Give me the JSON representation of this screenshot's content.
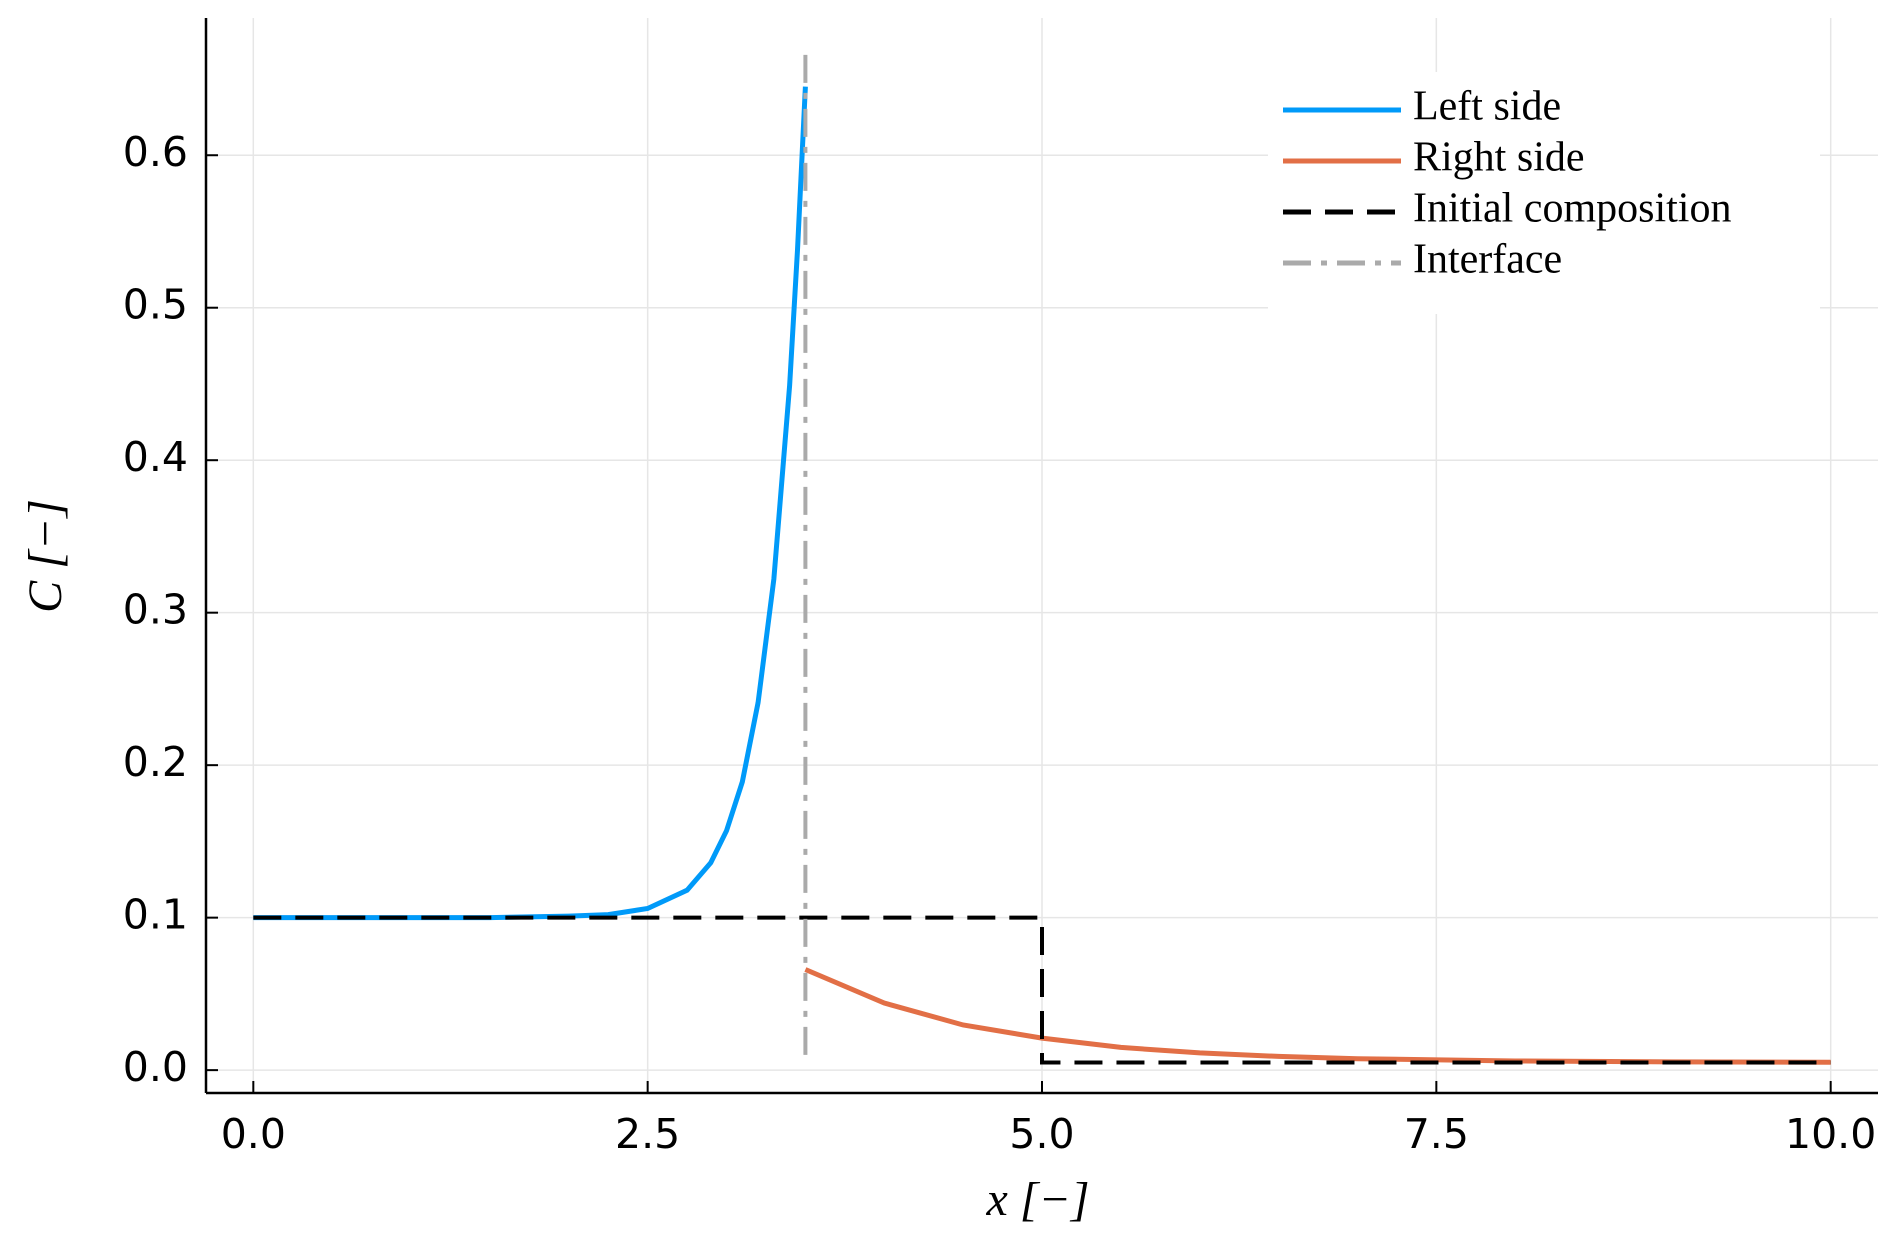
{
  "chart_data": {
    "type": "line",
    "xlabel": "x [−]",
    "ylabel": "C [−]",
    "xlim": [
      -0.3,
      10.3
    ],
    "ylim": [
      -0.015,
      0.69
    ],
    "xticks": [
      {
        "value": 0,
        "label": "0.0"
      },
      2.5,
      {
        "value": 5,
        "label": "5.0"
      },
      7.5,
      {
        "value": 10,
        "label": "10.0"
      }
    ],
    "yticks": [
      {
        "value": 0,
        "label": "0.0"
      },
      0.1,
      0.2,
      0.3,
      0.4,
      0.5,
      0.6
    ],
    "grid": true,
    "legend": "top-right",
    "series": [
      {
        "name": "Left side",
        "color": "#009af9",
        "line_style": "solid",
        "x": [
          0,
          0.5,
          1,
          1.5,
          2,
          2.25,
          2.5,
          2.75,
          2.9,
          3.0,
          3.1,
          3.2,
          3.3,
          3.4,
          3.45,
          3.5
        ],
        "values": [
          0.1,
          0.1,
          0.1,
          0.1,
          0.101,
          0.102,
          0.106,
          0.118,
          0.136,
          0.157,
          0.189,
          0.241,
          0.322,
          0.449,
          0.538,
          0.645
        ]
      },
      {
        "name": "Right side",
        "color": "#e26f46",
        "line_style": "solid",
        "x": [
          3.5,
          4,
          4.5,
          5,
          5.5,
          6,
          6.5,
          7,
          8,
          9,
          10
        ],
        "values": [
          0.066,
          0.044,
          0.0296,
          0.021,
          0.0149,
          0.0113,
          0.009,
          0.0075,
          0.006,
          0.0054,
          0.0052
        ]
      },
      {
        "name": "Initial composition",
        "color": "#000000",
        "line_style": "dash",
        "x": [
          0,
          5,
          5,
          10
        ],
        "values": [
          0.1,
          0.1,
          0.005,
          0.005
        ]
      },
      {
        "name": "Interface",
        "color": "#aaaaaa",
        "line_style": "dashdot",
        "x": [
          3.5,
          3.5
        ],
        "values": [
          0.01,
          0.67
        ]
      }
    ]
  }
}
